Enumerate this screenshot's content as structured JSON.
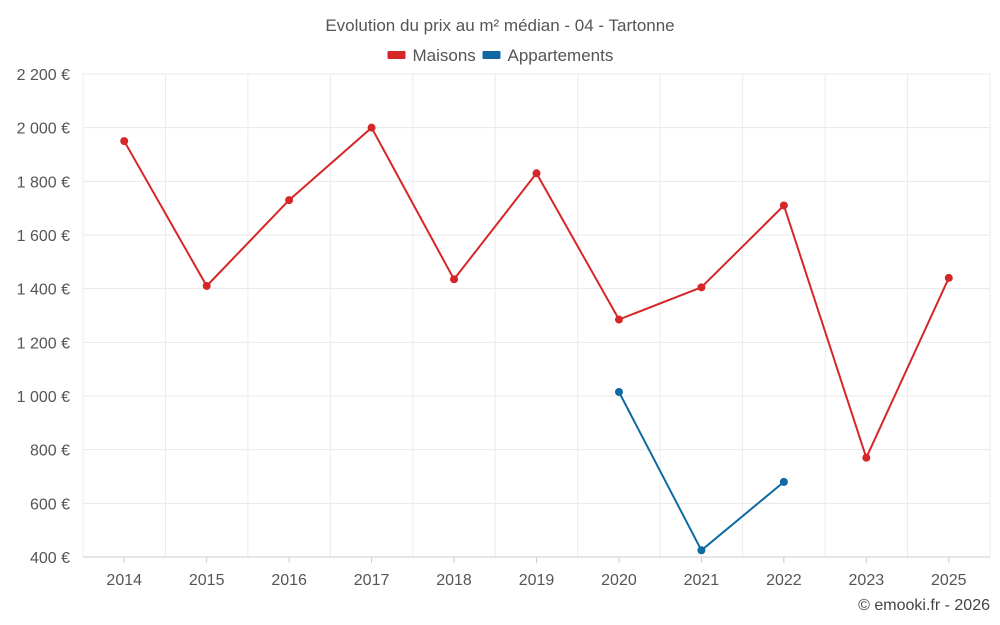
{
  "chart_data": {
    "type": "line",
    "title": "Evolution du prix au m² médian - 04 - Tartonne",
    "categories": [
      "2014",
      "2015",
      "2016",
      "2017",
      "2018",
      "2019",
      "2020",
      "2021",
      "2022",
      "2023",
      "2025"
    ],
    "series": [
      {
        "name": "Maisons",
        "color": "#d62728",
        "values": [
          1950,
          1410,
          1730,
          2000,
          1435,
          1830,
          1285,
          1405,
          1710,
          770,
          1440
        ]
      },
      {
        "name": "Appartements",
        "color": "#0f6aa3",
        "values": [
          null,
          null,
          null,
          null,
          null,
          null,
          1015,
          425,
          680,
          null,
          null
        ]
      }
    ],
    "ylim": [
      400,
      2200
    ],
    "yticks": [
      400,
      600,
      800,
      1000,
      1200,
      1400,
      1600,
      1800,
      2000,
      2200
    ],
    "ytick_labels": [
      "400 €",
      "600 €",
      "800 €",
      "1 000 €",
      "1 200 €",
      "1 400 €",
      "1 600 €",
      "1 800 €",
      "2 000 €",
      "2 200 €"
    ],
    "xlabel": "",
    "ylabel": "",
    "grid": true,
    "legend": "top-center",
    "credit": "© emooki.fr - 2026"
  }
}
